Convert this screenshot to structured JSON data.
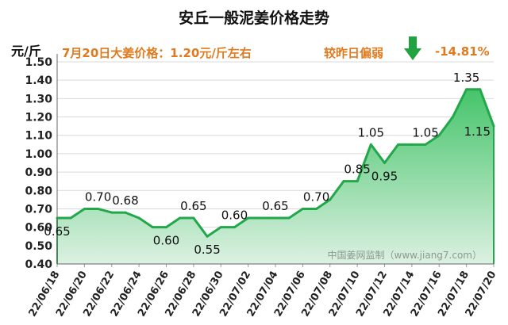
{
  "title": "安丘一般泥姜价格走势",
  "unit_label": "元/斤",
  "price_note": "7月20日大姜价格：1.20元/斤左右",
  "compare_label": "较昨日偏弱",
  "compare_value": "-14.81%",
  "watermark": "中国姜网监制（www.jiang7.com）",
  "colors": {
    "line": "#22a84a",
    "fill_top": "#45c46a",
    "fill_bottom": "#dcf1e2",
    "accent_text": "#e07a1f",
    "arrow": "#1fa23f"
  },
  "chart_data": {
    "type": "area",
    "title": "安丘一般泥姜价格走势",
    "ylabel": "元/斤",
    "ylim": [
      0.4,
      1.5
    ],
    "y_ticks": [
      "0.40",
      "0.50",
      "0.60",
      "0.70",
      "0.80",
      "0.90",
      "1.00",
      "1.10",
      "1.20",
      "1.30",
      "1.40",
      "1.50"
    ],
    "grid": true,
    "x_tick_labels": [
      "22/06/18",
      "22/06/20",
      "22/06/22",
      "22/06/24",
      "22/06/26",
      "22/06/28",
      "22/06/30",
      "22/07/02",
      "22/07/04",
      "22/07/06",
      "22/07/08",
      "22/07/10",
      "22/07/12",
      "22/07/14",
      "22/07/16",
      "22/07/18",
      "22/07/20"
    ],
    "series": [
      {
        "values": [
          0.65,
          0.65,
          0.7,
          0.7,
          0.68,
          0.68,
          0.65,
          0.6,
          0.6,
          0.65,
          0.65,
          0.55,
          0.6,
          0.6,
          0.65,
          0.65,
          0.65,
          0.65,
          0.7,
          0.7,
          0.75,
          0.85,
          0.85,
          1.05,
          0.95,
          1.05,
          1.05,
          1.05,
          1.1,
          1.2,
          1.35,
          1.35,
          1.15
        ]
      }
    ],
    "data_labels": [
      {
        "index": 0,
        "text": "0.65",
        "pos": "below"
      },
      {
        "index": 3,
        "text": "0.70",
        "pos": "above"
      },
      {
        "index": 5,
        "text": "0.68",
        "pos": "above"
      },
      {
        "index": 8,
        "text": "0.60",
        "pos": "below"
      },
      {
        "index": 10,
        "text": "0.65",
        "pos": "above"
      },
      {
        "index": 11,
        "text": "0.55",
        "pos": "below"
      },
      {
        "index": 13,
        "text": "0.60",
        "pos": "above"
      },
      {
        "index": 16,
        "text": "0.65",
        "pos": "above"
      },
      {
        "index": 19,
        "text": "0.70",
        "pos": "above"
      },
      {
        "index": 22,
        "text": "0.85",
        "pos": "above"
      },
      {
        "index": 23,
        "text": "1.05",
        "pos": "above"
      },
      {
        "index": 24,
        "text": "0.95",
        "pos": "below"
      },
      {
        "index": 27,
        "text": "1.05",
        "pos": "above"
      },
      {
        "index": 30,
        "text": "1.35",
        "pos": "above"
      },
      {
        "index": 32,
        "text": "1.15",
        "pos": "left"
      }
    ]
  }
}
